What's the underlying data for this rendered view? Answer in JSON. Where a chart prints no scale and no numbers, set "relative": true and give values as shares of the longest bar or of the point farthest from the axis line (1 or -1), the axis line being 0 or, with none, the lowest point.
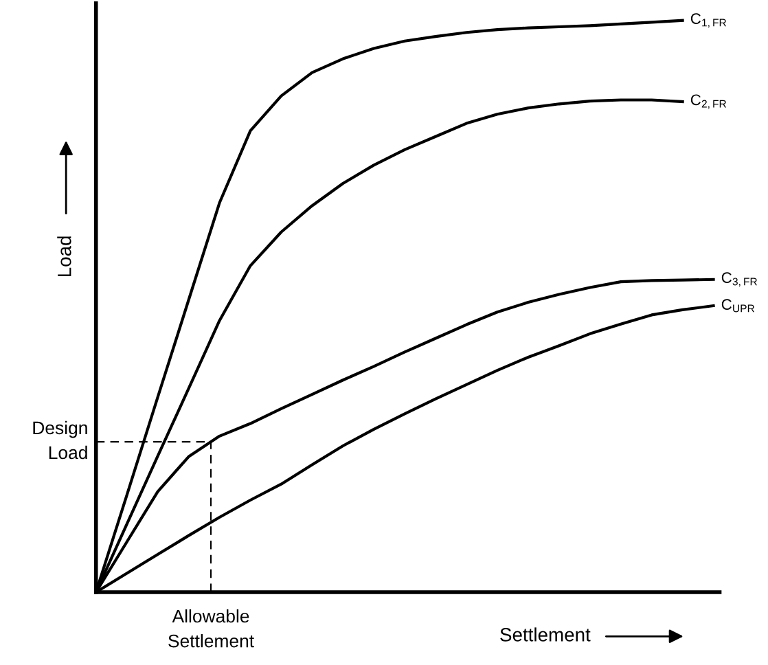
{
  "chart_data": {
    "type": "line",
    "relative": true,
    "xlabel": "Settlement",
    "ylabel": "Load",
    "marker": "none",
    "line_style": "solid",
    "categories": [
      null,
      null,
      null,
      null,
      null,
      null,
      null,
      null,
      null,
      null,
      null,
      null,
      null,
      null,
      null,
      null,
      null,
      null,
      null,
      null,
      null
    ],
    "series": [
      {
        "name": "C$_{1,FR}$",
        "color": "#000000",
        "values": [
          0,
          0.17,
          0.341,
          0.511,
          0.681,
          0.807,
          0.868,
          0.909,
          0.933,
          0.951,
          0.964,
          0.972,
          0.979,
          0.984,
          0.987,
          0.989,
          0.991,
          0.994,
          0.997,
          1.0,
          null
        ]
      },
      {
        "name": "C$_{2,FR}$",
        "color": "#000000",
        "values": [
          0,
          0.119,
          0.238,
          0.356,
          0.475,
          0.571,
          0.63,
          0.676,
          0.715,
          0.747,
          0.774,
          0.797,
          0.82,
          0.836,
          0.847,
          0.854,
          0.859,
          0.861,
          0.861,
          0.858,
          null
        ]
      },
      {
        "name": "C$_{3,FR}$",
        "color": "#000000",
        "values": [
          0,
          0.088,
          0.176,
          0.237,
          0.273,
          0.295,
          0.321,
          0.346,
          0.371,
          0.395,
          0.42,
          0.444,
          0.468,
          0.49,
          0.507,
          0.521,
          0.533,
          0.543,
          0.545,
          0.546,
          0.547
        ]
      },
      {
        "name": "C$_{UPR}$",
        "color": "#000000",
        "values": [
          0,
          0.033,
          0.066,
          0.099,
          0.131,
          0.161,
          0.189,
          0.223,
          0.256,
          0.285,
          0.312,
          0.338,
          0.363,
          0.388,
          0.411,
          0.431,
          0.452,
          0.469,
          0.485,
          0.494,
          0.501
        ]
      }
    ],
    "ref_lines": [
      {
        "axis": "y",
        "value": 0.263,
        "label": "Design\nLoad",
        "color": "#000000",
        "line_style": "dashed"
      }
    ],
    "annotations": [
      "Allowable\nSettlement"
    ]
  }
}
